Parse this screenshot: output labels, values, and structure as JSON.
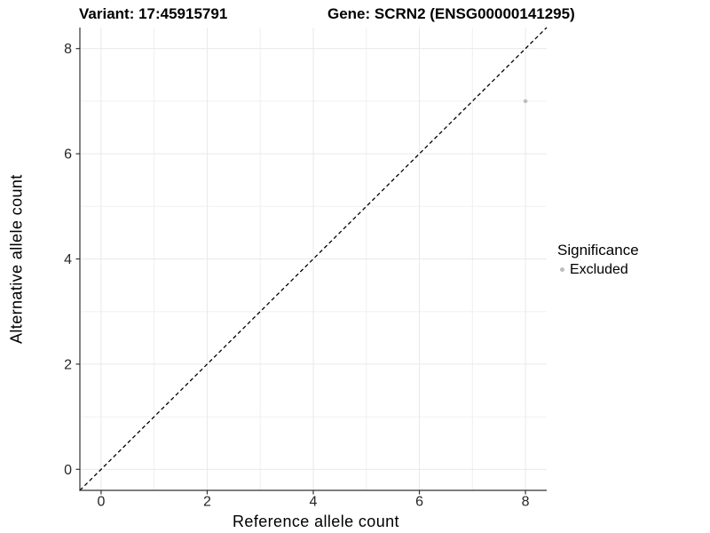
{
  "chart_data": {
    "type": "scatter",
    "title_left": "Variant: 17:45915791",
    "title_right": "Gene: SCRN2 (ENSG00000141295)",
    "xlabel": "Reference allele count",
    "ylabel": "Alternative allele count",
    "xlim": [
      -0.4,
      8.4
    ],
    "ylim": [
      -0.4,
      8.4
    ],
    "x_ticks": [
      0,
      2,
      4,
      6,
      8
    ],
    "y_ticks": [
      0,
      2,
      4,
      6,
      8
    ],
    "x_minor": [
      1,
      3,
      5,
      7
    ],
    "y_minor": [
      1,
      3,
      5,
      7
    ],
    "grid": true,
    "points": [
      {
        "x": 8,
        "y": 7,
        "series": "Excluded"
      }
    ],
    "abline": {
      "slope": 1,
      "intercept": 0,
      "style": "dashed"
    },
    "legend": {
      "title": "Significance",
      "position": "right",
      "entries": [
        {
          "label": "Excluded",
          "color": "#bebebe"
        }
      ]
    },
    "colors": {
      "point": "#bebebe",
      "grid_major": "#e9e9e9",
      "grid_minor": "#f0f0f0",
      "axis": "#333333",
      "tick_text": "#262626",
      "dashed_line": "#000000"
    }
  }
}
